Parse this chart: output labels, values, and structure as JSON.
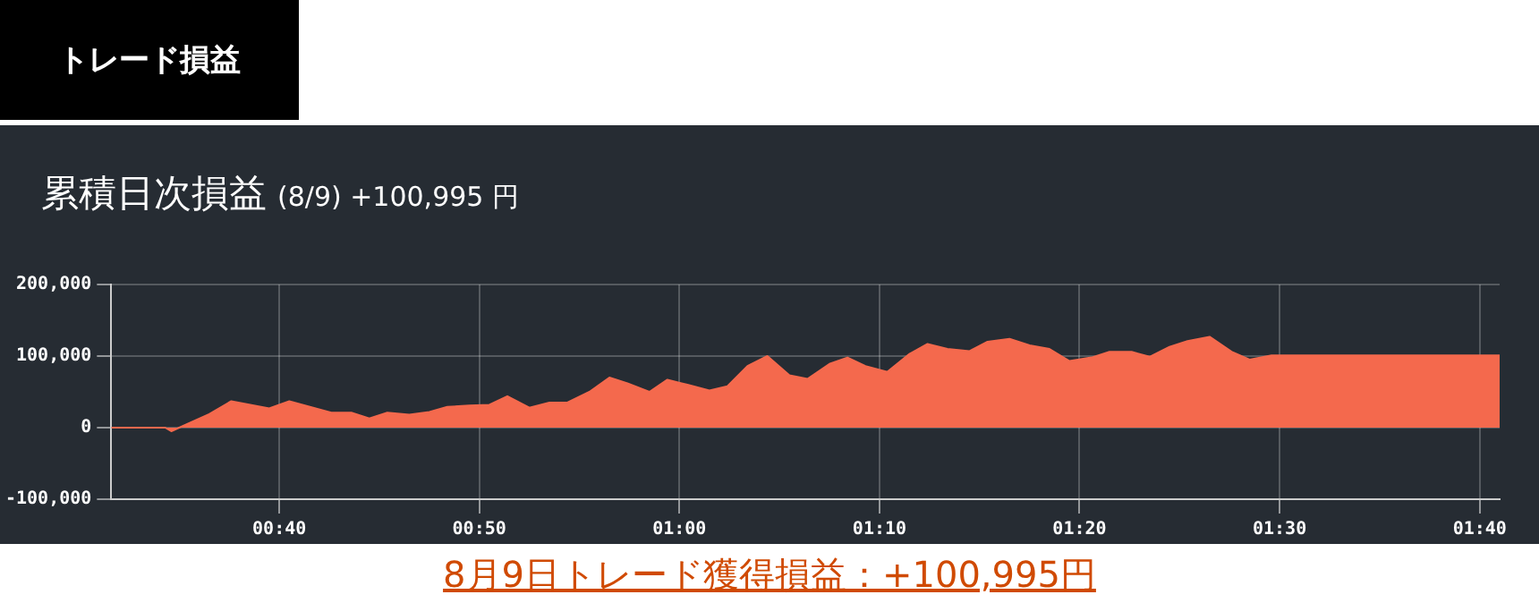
{
  "chart_data": {
    "type": "area",
    "title": "累積日次損益",
    "subtitle": "(8/9) +100,995 円",
    "annotations": [
      "トレード損益",
      "8月9日トレード獲得損益：+100,995円"
    ],
    "x": [
      0.5267,
      0.5717,
      0.5767,
      0.6083,
      0.6267,
      0.6583,
      0.675,
      0.71,
      0.7267,
      0.7417,
      0.7567,
      0.775,
      0.7917,
      0.8067,
      0.825,
      0.8417,
      0.8567,
      0.875,
      0.8917,
      0.9067,
      0.925,
      0.9417,
      0.9567,
      0.975,
      0.99,
      1.0067,
      1.025,
      1.04,
      1.0567,
      1.0733,
      1.0917,
      1.1067,
      1.125,
      1.14,
      1.155,
      1.1733,
      1.1917,
      1.2067,
      1.2233,
      1.2417,
      1.2567,
      1.275,
      1.2917,
      1.3083,
      1.325,
      1.3433,
      1.3583,
      1.3767,
      1.3917,
      1.4083,
      1.4233,
      1.4417,
      1.46,
      1.475,
      1.4933,
      1.6833
    ],
    "series": [
      {
        "color": "#f4694d",
        "values": [
          0,
          0,
          -5000,
          19000,
          37000,
          27000,
          37000,
          21000,
          21000,
          13000,
          21000,
          18000,
          22000,
          29000,
          31000,
          32000,
          44000,
          28000,
          35000,
          35000,
          50000,
          70000,
          62000,
          50000,
          67000,
          60000,
          52000,
          58000,
          86000,
          100000,
          73000,
          68000,
          89000,
          98000,
          86000,
          78000,
          103000,
          117000,
          110000,
          107000,
          120000,
          124000,
          115000,
          110000,
          93000,
          98000,
          106000,
          106000,
          99000,
          113000,
          121000,
          127000,
          106000,
          95000,
          100995,
          100995
        ]
      }
    ],
    "xlim": [
      0.5267,
      1.6833
    ],
    "xticks": [
      {
        "value": 0.6667,
        "label": "00:40"
      },
      {
        "value": 0.8333,
        "label": "00:50"
      },
      {
        "value": 1,
        "label": "01:00"
      },
      {
        "value": 1.1667,
        "label": "01:10"
      },
      {
        "value": 1.3333,
        "label": "01:20"
      },
      {
        "value": 1.5,
        "label": "01:30"
      },
      {
        "value": 1.6667,
        "label": "01:40"
      }
    ],
    "ylim": [
      -100000,
      200000
    ],
    "yticks": [
      {
        "value": -100000,
        "label": "-100,000"
      },
      {
        "value": 0,
        "label": "0"
      },
      {
        "value": 100000,
        "label": "100,000"
      },
      {
        "value": 200000,
        "label": "200,000"
      }
    ],
    "grid": true,
    "legend": false,
    "marker": "none"
  }
}
